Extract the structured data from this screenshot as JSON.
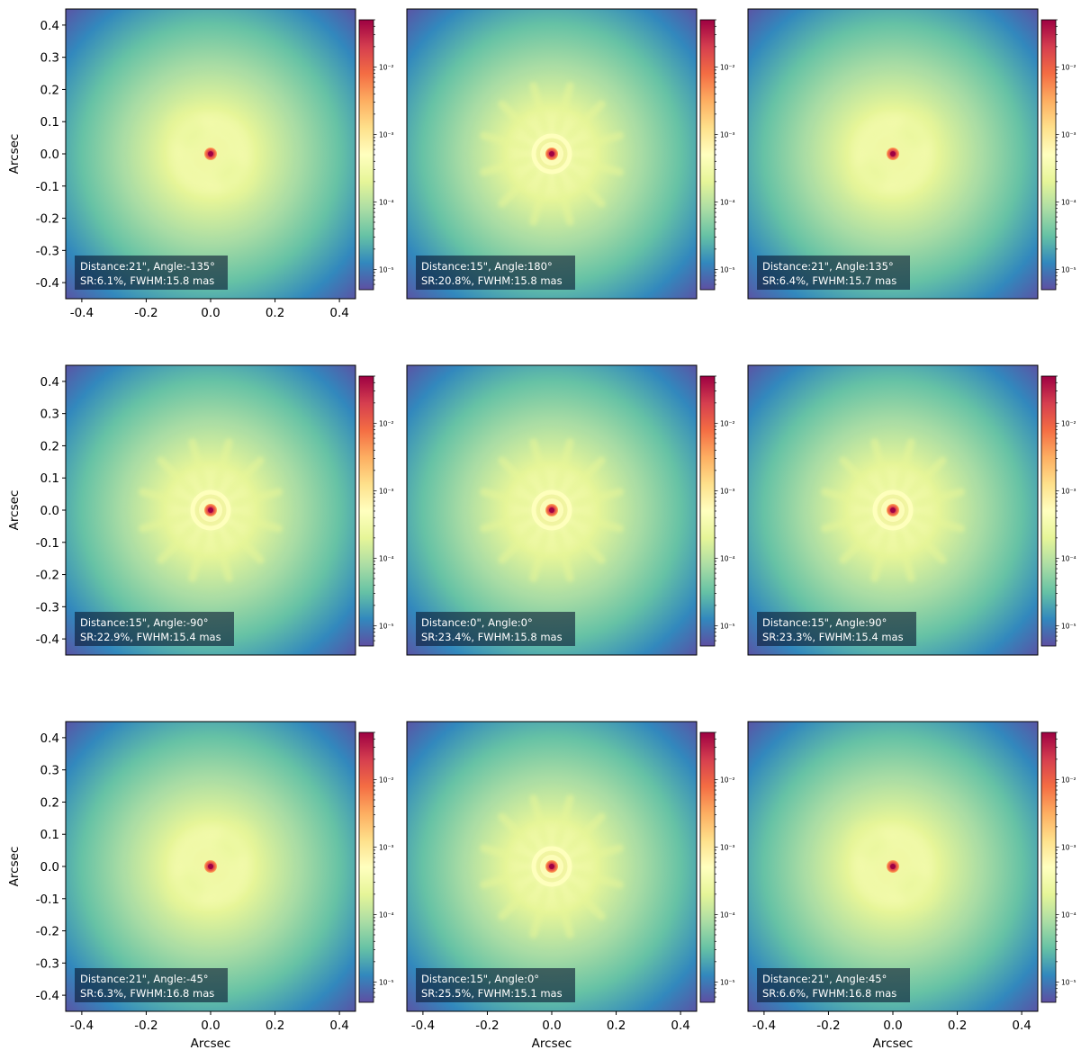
{
  "figure": {
    "xlabel": "Arcsec",
    "ylabel": "Arcsec"
  },
  "colormap": {
    "name": "Spectral_r",
    "stops": [
      "#5e4fa2",
      "#3288bd",
      "#66c2a5",
      "#abdda4",
      "#e6f598",
      "#ffffbf",
      "#fee08b",
      "#fdae61",
      "#f46d43",
      "#d53e4f",
      "#9e0142"
    ],
    "scale": "log",
    "range": [
      5e-06,
      0.05
    ]
  },
  "chart_data": [
    {
      "type": "heatmap",
      "panel": 1,
      "row": 0,
      "col": 0,
      "annotation": [
        "Distance:21\", Angle:-135°",
        "SR:6.1%, FWHM:15.8 mas"
      ],
      "distance_arcsec": 21,
      "angle_deg": -135,
      "sr_percent": 6.1,
      "fwhm_mas": 15.8,
      "xlim": [
        -0.45,
        0.45
      ],
      "ylim": [
        -0.45,
        0.45
      ],
      "xticks": [
        "-0.4",
        "-0.2",
        "0.0",
        "0.2",
        "0.4"
      ],
      "yticks": [
        "0.4",
        "0.3",
        "0.2",
        "0.1",
        "0.0",
        "-0.1",
        "-0.2",
        "-0.3",
        "-0.4"
      ],
      "ylabel": "Arcsec",
      "xlabel": "",
      "colorbar_ticks": [
        "10⁻⁵",
        "10⁻⁴",
        "10⁻³",
        "10⁻²"
      ]
    },
    {
      "type": "heatmap",
      "panel": 2,
      "row": 0,
      "col": 1,
      "annotation": [
        "Distance:15\", Angle:180°",
        "SR:20.8%, FWHM:15.8 mas"
      ],
      "distance_arcsec": 15,
      "angle_deg": 180,
      "sr_percent": 20.8,
      "fwhm_mas": 15.8,
      "xlim": [
        -0.45,
        0.45
      ],
      "ylim": [
        -0.45,
        0.45
      ],
      "xticks": [],
      "yticks": [],
      "ylabel": "",
      "xlabel": "",
      "colorbar_ticks": [
        "10⁻⁵",
        "10⁻⁴",
        "10⁻³",
        "10⁻²"
      ]
    },
    {
      "type": "heatmap",
      "panel": 3,
      "row": 0,
      "col": 2,
      "annotation": [
        "Distance:21\", Angle:135°",
        "SR:6.4%, FWHM:15.7 mas"
      ],
      "distance_arcsec": 21,
      "angle_deg": 135,
      "sr_percent": 6.4,
      "fwhm_mas": 15.7,
      "xlim": [
        -0.45,
        0.45
      ],
      "ylim": [
        -0.45,
        0.45
      ],
      "xticks": [],
      "yticks": [],
      "ylabel": "",
      "xlabel": "",
      "colorbar_ticks": [
        "10⁻⁵",
        "10⁻⁴",
        "10⁻³",
        "10⁻²"
      ]
    },
    {
      "type": "heatmap",
      "panel": 4,
      "row": 1,
      "col": 0,
      "annotation": [
        "Distance:15\", Angle:-90°",
        "SR:22.9%, FWHM:15.4 mas"
      ],
      "distance_arcsec": 15,
      "angle_deg": -90,
      "sr_percent": 22.9,
      "fwhm_mas": 15.4,
      "xlim": [
        -0.45,
        0.45
      ],
      "ylim": [
        -0.45,
        0.45
      ],
      "xticks": [],
      "yticks": [
        "0.4",
        "0.3",
        "0.2",
        "0.1",
        "0.0",
        "-0.1",
        "-0.2",
        "-0.3",
        "-0.4"
      ],
      "ylabel": "Arcsec",
      "xlabel": "",
      "colorbar_ticks": [
        "10⁻⁵",
        "10⁻⁴",
        "10⁻³",
        "10⁻²"
      ]
    },
    {
      "type": "heatmap",
      "panel": 5,
      "row": 1,
      "col": 1,
      "annotation": [
        "Distance:0\", Angle:0°",
        "SR:23.4%, FWHM:15.8 mas"
      ],
      "distance_arcsec": 0,
      "angle_deg": 0,
      "sr_percent": 23.4,
      "fwhm_mas": 15.8,
      "xlim": [
        -0.45,
        0.45
      ],
      "ylim": [
        -0.45,
        0.45
      ],
      "xticks": [],
      "yticks": [],
      "ylabel": "",
      "xlabel": "",
      "colorbar_ticks": [
        "10⁻⁵",
        "10⁻⁴",
        "10⁻³",
        "10⁻²"
      ]
    },
    {
      "type": "heatmap",
      "panel": 6,
      "row": 1,
      "col": 2,
      "annotation": [
        "Distance:15\", Angle:90°",
        "SR:23.3%, FWHM:15.4 mas"
      ],
      "distance_arcsec": 15,
      "angle_deg": 90,
      "sr_percent": 23.3,
      "fwhm_mas": 15.4,
      "xlim": [
        -0.45,
        0.45
      ],
      "ylim": [
        -0.45,
        0.45
      ],
      "xticks": [],
      "yticks": [],
      "ylabel": "",
      "xlabel": "",
      "colorbar_ticks": [
        "10⁻⁵",
        "10⁻⁴",
        "10⁻³",
        "10⁻²"
      ]
    },
    {
      "type": "heatmap",
      "panel": 7,
      "row": 2,
      "col": 0,
      "annotation": [
        "Distance:21\", Angle:-45°",
        "SR:6.3%, FWHM:16.8 mas"
      ],
      "distance_arcsec": 21,
      "angle_deg": -45,
      "sr_percent": 6.3,
      "fwhm_mas": 16.8,
      "xlim": [
        -0.45,
        0.45
      ],
      "ylim": [
        -0.45,
        0.45
      ],
      "xticks": [
        "-0.4",
        "-0.2",
        "0.0",
        "0.2",
        "0.4"
      ],
      "yticks": [
        "0.4",
        "0.3",
        "0.2",
        "0.1",
        "0.0",
        "-0.1",
        "-0.2",
        "-0.3",
        "-0.4"
      ],
      "ylabel": "Arcsec",
      "xlabel": "Arcsec",
      "colorbar_ticks": [
        "10⁻⁵",
        "10⁻⁴",
        "10⁻³",
        "10⁻²"
      ]
    },
    {
      "type": "heatmap",
      "panel": 8,
      "row": 2,
      "col": 1,
      "annotation": [
        "Distance:15\", Angle:0°",
        "SR:25.5%, FWHM:15.1 mas"
      ],
      "distance_arcsec": 15,
      "angle_deg": 0,
      "sr_percent": 25.5,
      "fwhm_mas": 15.1,
      "xlim": [
        -0.45,
        0.45
      ],
      "ylim": [
        -0.45,
        0.45
      ],
      "xticks": [
        "-0.4",
        "-0.2",
        "0.0",
        "0.2",
        "0.4"
      ],
      "yticks": [],
      "ylabel": "",
      "xlabel": "Arcsec",
      "colorbar_ticks": [
        "10⁻⁵",
        "10⁻⁴",
        "10⁻³",
        "10⁻²"
      ]
    },
    {
      "type": "heatmap",
      "panel": 9,
      "row": 2,
      "col": 2,
      "annotation": [
        "Distance:21\", Angle:45°",
        "SR:6.6%, FWHM:16.8 mas"
      ],
      "distance_arcsec": 21,
      "angle_deg": 45,
      "sr_percent": 6.6,
      "fwhm_mas": 16.8,
      "xlim": [
        -0.45,
        0.45
      ],
      "ylim": [
        -0.45,
        0.45
      ],
      "xticks": [
        "-0.4",
        "-0.2",
        "0.0",
        "0.2",
        "0.4"
      ],
      "yticks": [],
      "ylabel": "",
      "xlabel": "Arcsec",
      "colorbar_ticks": [
        "10⁻⁵",
        "10⁻⁴",
        "10⁻³",
        "10⁻²"
      ]
    }
  ]
}
